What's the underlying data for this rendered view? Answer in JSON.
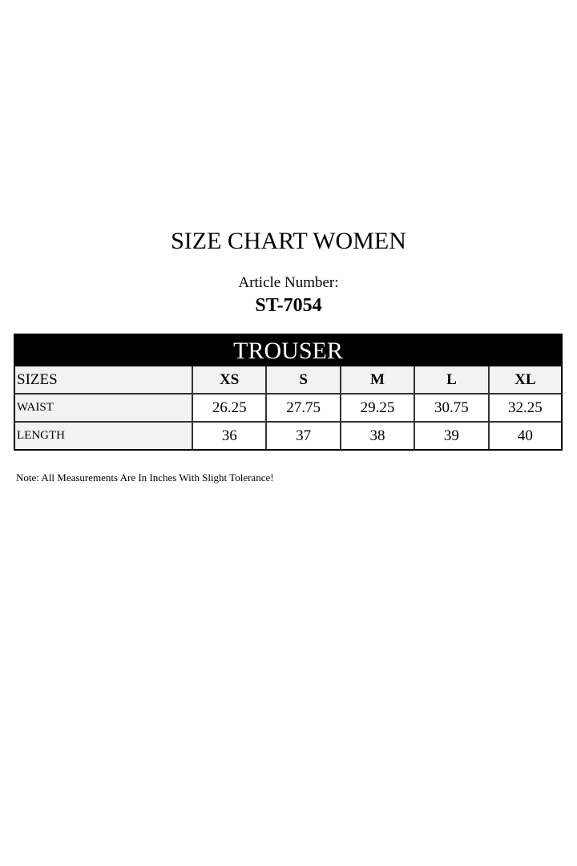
{
  "title": "SIZE CHART WOMEN",
  "article_label": "Article Number:",
  "article_number": "ST-7054",
  "table": {
    "heading": "TROUSER",
    "header": [
      "SIZES",
      "XS",
      "S",
      "M",
      "L",
      "XL"
    ],
    "rows": [
      {
        "label": "WAIST",
        "values": [
          "26.25",
          "27.75",
          "29.25",
          "30.75",
          "32.25"
        ]
      },
      {
        "label": "LENGTH",
        "values": [
          "36",
          "37",
          "38",
          "39",
          "40"
        ]
      }
    ]
  },
  "note": "Note: All Measurements Are In Inches With Slight Tolerance!"
}
